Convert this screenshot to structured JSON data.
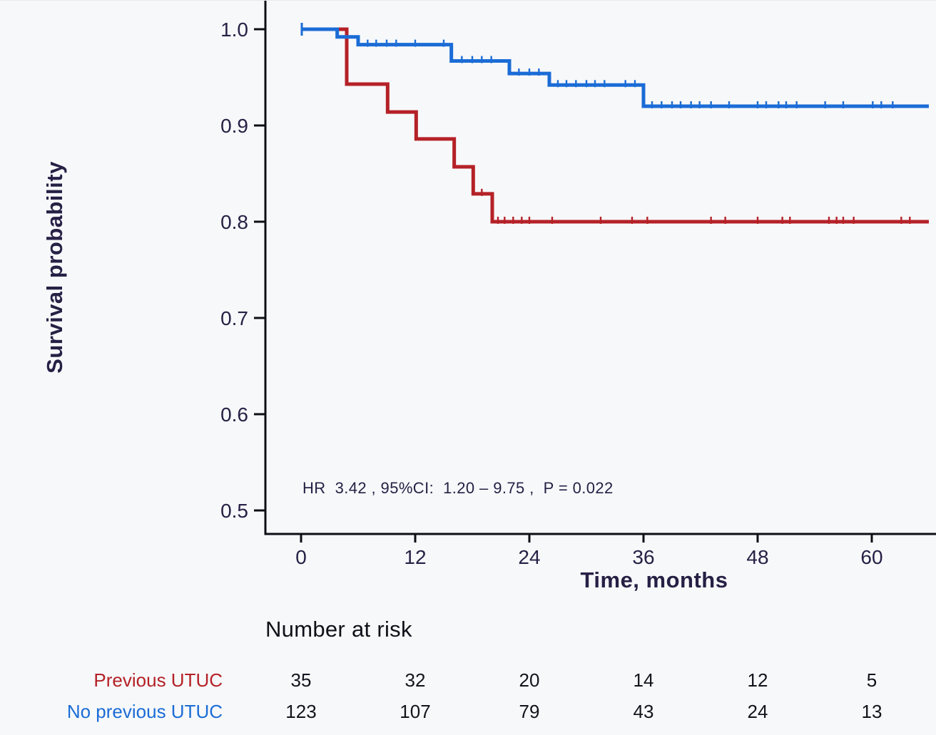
{
  "palette": {
    "background": "#f7f8fa",
    "axis_line": "#0e0e16",
    "tick_text": "#272045",
    "risk_text": "#13131c",
    "red": "#b42127",
    "blue": "#1b6cd6"
  },
  "chart_data": {
    "type": "line",
    "variant": "kaplan_meier_step_survival",
    "title": "",
    "xlabel": "Time, months",
    "ylabel": "Survival probability",
    "xlim": [
      0,
      66
    ],
    "ylim": [
      0.475,
      1.01
    ],
    "grid": false,
    "legend_position": "none",
    "x_ticks": [
      0,
      12,
      24,
      36,
      48,
      60
    ],
    "y_ticks": [
      {
        "label": "1.0",
        "value": 1.0
      },
      {
        "label": "0.9",
        "value": 0.9
      },
      {
        "label": "0.8",
        "value": 0.8
      },
      {
        "label": "0.7",
        "value": 0.7
      },
      {
        "label": "0.6",
        "value": 0.6
      },
      {
        "label": "0.5",
        "value": 0.5
      }
    ],
    "annotation": "HR  3.42 , 95%CI:  1.20 – 9.75 ,  P = 0.022",
    "series": [
      {
        "name": "Previous UTUC",
        "color": "#b42127",
        "steps": [
          [
            0,
            1.0
          ],
          [
            4.8,
            0.943
          ],
          [
            9.1,
            0.914
          ],
          [
            12.1,
            0.886
          ],
          [
            16.1,
            0.857
          ],
          [
            18.1,
            0.829
          ],
          [
            20.1,
            0.8
          ],
          [
            66,
            0.8
          ]
        ],
        "censor_times": [
          19.0,
          20.7,
          21.4,
          22.3,
          23.2,
          24.0,
          26.4,
          31.5,
          34.8,
          36.4,
          43.1,
          44.6,
          48.0,
          50.6,
          51.4,
          55.5,
          56.3,
          57.0,
          58.1,
          63.1,
          64.0
        ]
      },
      {
        "name": "No previous UTUC",
        "color": "#1b6cd6",
        "steps": [
          [
            0,
            1.0
          ],
          [
            3.8,
            0.992
          ],
          [
            6.0,
            0.984
          ],
          [
            15.8,
            0.967
          ],
          [
            21.9,
            0.954
          ],
          [
            26.1,
            0.942
          ],
          [
            36.0,
            0.92
          ],
          [
            66,
            0.92
          ]
        ],
        "censor_times": [
          7.0,
          7.9,
          9.0,
          10.0,
          12.0,
          15.0,
          16.9,
          18.0,
          19.0,
          20.0,
          22.9,
          24.0,
          25.0,
          27.0,
          27.9,
          28.9,
          30.0,
          30.9,
          31.9,
          34.1,
          35.1,
          36.9,
          37.9,
          39.0,
          39.9,
          41.0,
          41.9,
          43.1,
          45.0,
          48.0,
          48.9,
          50.2,
          51.0,
          52.1,
          55.1,
          57.0,
          60.1,
          61.0,
          62.2
        ]
      }
    ]
  },
  "risk_table": {
    "title": "Number at risk",
    "time_points": [
      0,
      12,
      24,
      36,
      48,
      60
    ],
    "rows": [
      {
        "label": "Previous UTUC",
        "color": "#b42127",
        "counts": [
          "35",
          "32",
          "20",
          "14",
          "12",
          "5"
        ]
      },
      {
        "label": "No previous UTUC",
        "color": "#1b6cd6",
        "counts": [
          "123",
          "107",
          "79",
          "43",
          "24",
          "13"
        ]
      }
    ]
  }
}
